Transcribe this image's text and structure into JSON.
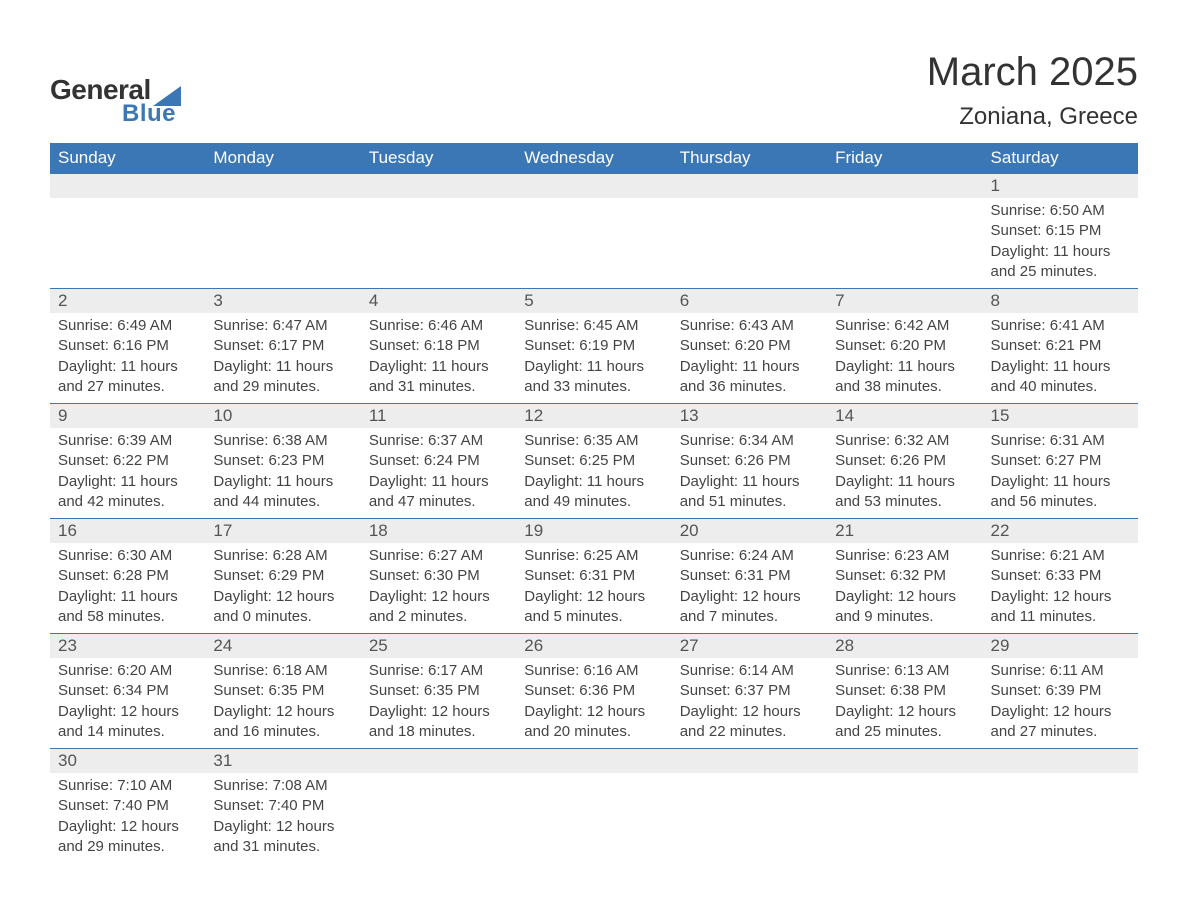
{
  "logo": {
    "text_general": "General",
    "text_blue": "Blue"
  },
  "title": {
    "month": "March 2025",
    "location": "Zoniana, Greece"
  },
  "colors": {
    "header_bg": "#3b76b5",
    "header_text": "#ffffff",
    "daynum_bg": "#ededed",
    "row_border": "#3b76b5",
    "body_text": "#444444"
  },
  "typography": {
    "month_fontsize_pt": 30,
    "location_fontsize_pt": 18,
    "header_fontsize_pt": 13,
    "daynum_fontsize_pt": 13,
    "body_fontsize_pt": 11,
    "font_family": "Arial"
  },
  "calendar": {
    "headers": [
      "Sunday",
      "Monday",
      "Tuesday",
      "Wednesday",
      "Thursday",
      "Friday",
      "Saturday"
    ],
    "weeks": [
      [
        null,
        null,
        null,
        null,
        null,
        null,
        {
          "day": "1",
          "sunrise": "Sunrise: 6:50 AM",
          "sunset": "Sunset: 6:15 PM",
          "daylight1": "Daylight: 11 hours",
          "daylight2": "and 25 minutes."
        }
      ],
      [
        {
          "day": "2",
          "sunrise": "Sunrise: 6:49 AM",
          "sunset": "Sunset: 6:16 PM",
          "daylight1": "Daylight: 11 hours",
          "daylight2": "and 27 minutes."
        },
        {
          "day": "3",
          "sunrise": "Sunrise: 6:47 AM",
          "sunset": "Sunset: 6:17 PM",
          "daylight1": "Daylight: 11 hours",
          "daylight2": "and 29 minutes."
        },
        {
          "day": "4",
          "sunrise": "Sunrise: 6:46 AM",
          "sunset": "Sunset: 6:18 PM",
          "daylight1": "Daylight: 11 hours",
          "daylight2": "and 31 minutes."
        },
        {
          "day": "5",
          "sunrise": "Sunrise: 6:45 AM",
          "sunset": "Sunset: 6:19 PM",
          "daylight1": "Daylight: 11 hours",
          "daylight2": "and 33 minutes."
        },
        {
          "day": "6",
          "sunrise": "Sunrise: 6:43 AM",
          "sunset": "Sunset: 6:20 PM",
          "daylight1": "Daylight: 11 hours",
          "daylight2": "and 36 minutes."
        },
        {
          "day": "7",
          "sunrise": "Sunrise: 6:42 AM",
          "sunset": "Sunset: 6:20 PM",
          "daylight1": "Daylight: 11 hours",
          "daylight2": "and 38 minutes."
        },
        {
          "day": "8",
          "sunrise": "Sunrise: 6:41 AM",
          "sunset": "Sunset: 6:21 PM",
          "daylight1": "Daylight: 11 hours",
          "daylight2": "and 40 minutes."
        }
      ],
      [
        {
          "day": "9",
          "sunrise": "Sunrise: 6:39 AM",
          "sunset": "Sunset: 6:22 PM",
          "daylight1": "Daylight: 11 hours",
          "daylight2": "and 42 minutes."
        },
        {
          "day": "10",
          "sunrise": "Sunrise: 6:38 AM",
          "sunset": "Sunset: 6:23 PM",
          "daylight1": "Daylight: 11 hours",
          "daylight2": "and 44 minutes."
        },
        {
          "day": "11",
          "sunrise": "Sunrise: 6:37 AM",
          "sunset": "Sunset: 6:24 PM",
          "daylight1": "Daylight: 11 hours",
          "daylight2": "and 47 minutes."
        },
        {
          "day": "12",
          "sunrise": "Sunrise: 6:35 AM",
          "sunset": "Sunset: 6:25 PM",
          "daylight1": "Daylight: 11 hours",
          "daylight2": "and 49 minutes."
        },
        {
          "day": "13",
          "sunrise": "Sunrise: 6:34 AM",
          "sunset": "Sunset: 6:26 PM",
          "daylight1": "Daylight: 11 hours",
          "daylight2": "and 51 minutes."
        },
        {
          "day": "14",
          "sunrise": "Sunrise: 6:32 AM",
          "sunset": "Sunset: 6:26 PM",
          "daylight1": "Daylight: 11 hours",
          "daylight2": "and 53 minutes."
        },
        {
          "day": "15",
          "sunrise": "Sunrise: 6:31 AM",
          "sunset": "Sunset: 6:27 PM",
          "daylight1": "Daylight: 11 hours",
          "daylight2": "and 56 minutes."
        }
      ],
      [
        {
          "day": "16",
          "sunrise": "Sunrise: 6:30 AM",
          "sunset": "Sunset: 6:28 PM",
          "daylight1": "Daylight: 11 hours",
          "daylight2": "and 58 minutes."
        },
        {
          "day": "17",
          "sunrise": "Sunrise: 6:28 AM",
          "sunset": "Sunset: 6:29 PM",
          "daylight1": "Daylight: 12 hours",
          "daylight2": "and 0 minutes."
        },
        {
          "day": "18",
          "sunrise": "Sunrise: 6:27 AM",
          "sunset": "Sunset: 6:30 PM",
          "daylight1": "Daylight: 12 hours",
          "daylight2": "and 2 minutes."
        },
        {
          "day": "19",
          "sunrise": "Sunrise: 6:25 AM",
          "sunset": "Sunset: 6:31 PM",
          "daylight1": "Daylight: 12 hours",
          "daylight2": "and 5 minutes."
        },
        {
          "day": "20",
          "sunrise": "Sunrise: 6:24 AM",
          "sunset": "Sunset: 6:31 PM",
          "daylight1": "Daylight: 12 hours",
          "daylight2": "and 7 minutes."
        },
        {
          "day": "21",
          "sunrise": "Sunrise: 6:23 AM",
          "sunset": "Sunset: 6:32 PM",
          "daylight1": "Daylight: 12 hours",
          "daylight2": "and 9 minutes."
        },
        {
          "day": "22",
          "sunrise": "Sunrise: 6:21 AM",
          "sunset": "Sunset: 6:33 PM",
          "daylight1": "Daylight: 12 hours",
          "daylight2": "and 11 minutes."
        }
      ],
      [
        {
          "day": "23",
          "sunrise": "Sunrise: 6:20 AM",
          "sunset": "Sunset: 6:34 PM",
          "daylight1": "Daylight: 12 hours",
          "daylight2": "and 14 minutes."
        },
        {
          "day": "24",
          "sunrise": "Sunrise: 6:18 AM",
          "sunset": "Sunset: 6:35 PM",
          "daylight1": "Daylight: 12 hours",
          "daylight2": "and 16 minutes."
        },
        {
          "day": "25",
          "sunrise": "Sunrise: 6:17 AM",
          "sunset": "Sunset: 6:35 PM",
          "daylight1": "Daylight: 12 hours",
          "daylight2": "and 18 minutes."
        },
        {
          "day": "26",
          "sunrise": "Sunrise: 6:16 AM",
          "sunset": "Sunset: 6:36 PM",
          "daylight1": "Daylight: 12 hours",
          "daylight2": "and 20 minutes."
        },
        {
          "day": "27",
          "sunrise": "Sunrise: 6:14 AM",
          "sunset": "Sunset: 6:37 PM",
          "daylight1": "Daylight: 12 hours",
          "daylight2": "and 22 minutes."
        },
        {
          "day": "28",
          "sunrise": "Sunrise: 6:13 AM",
          "sunset": "Sunset: 6:38 PM",
          "daylight1": "Daylight: 12 hours",
          "daylight2": "and 25 minutes."
        },
        {
          "day": "29",
          "sunrise": "Sunrise: 6:11 AM",
          "sunset": "Sunset: 6:39 PM",
          "daylight1": "Daylight: 12 hours",
          "daylight2": "and 27 minutes."
        }
      ],
      [
        {
          "day": "30",
          "sunrise": "Sunrise: 7:10 AM",
          "sunset": "Sunset: 7:40 PM",
          "daylight1": "Daylight: 12 hours",
          "daylight2": "and 29 minutes."
        },
        {
          "day": "31",
          "sunrise": "Sunrise: 7:08 AM",
          "sunset": "Sunset: 7:40 PM",
          "daylight1": "Daylight: 12 hours",
          "daylight2": "and 31 minutes."
        },
        null,
        null,
        null,
        null,
        null
      ]
    ]
  }
}
